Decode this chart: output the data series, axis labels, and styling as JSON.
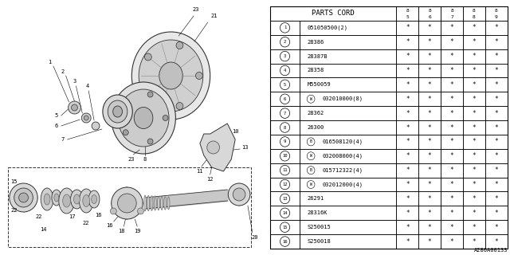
{
  "ref_code": "A280A00133",
  "bg_color": "#ffffff",
  "col_header": "PARTS CORD",
  "year_cols": [
    "85",
    "86",
    "87",
    "88",
    "89"
  ],
  "parts": [
    {
      "num": "1",
      "prefix": "",
      "code": "051050500(2)"
    },
    {
      "num": "2",
      "prefix": "",
      "code": "28386"
    },
    {
      "num": "3",
      "prefix": "",
      "code": "28387B"
    },
    {
      "num": "4",
      "prefix": "",
      "code": "28358"
    },
    {
      "num": "5",
      "prefix": "",
      "code": "M550059"
    },
    {
      "num": "6",
      "prefix": "W",
      "code": "032010000(8)"
    },
    {
      "num": "7",
      "prefix": "",
      "code": "28362"
    },
    {
      "num": "8",
      "prefix": "",
      "code": "26300"
    },
    {
      "num": "9",
      "prefix": "B",
      "code": "016508120(4)"
    },
    {
      "num": "10",
      "prefix": "W",
      "code": "032008000(4)"
    },
    {
      "num": "11",
      "prefix": "B",
      "code": "015712322(4)"
    },
    {
      "num": "12",
      "prefix": "W",
      "code": "032012000(4)"
    },
    {
      "num": "13",
      "prefix": "",
      "code": "26291"
    },
    {
      "num": "14",
      "prefix": "",
      "code": "28316K"
    },
    {
      "num": "15",
      "prefix": "",
      "code": "S250015"
    },
    {
      "num": "16",
      "prefix": "",
      "code": "S250018"
    }
  ],
  "star": "*",
  "diag_split": 0.515
}
